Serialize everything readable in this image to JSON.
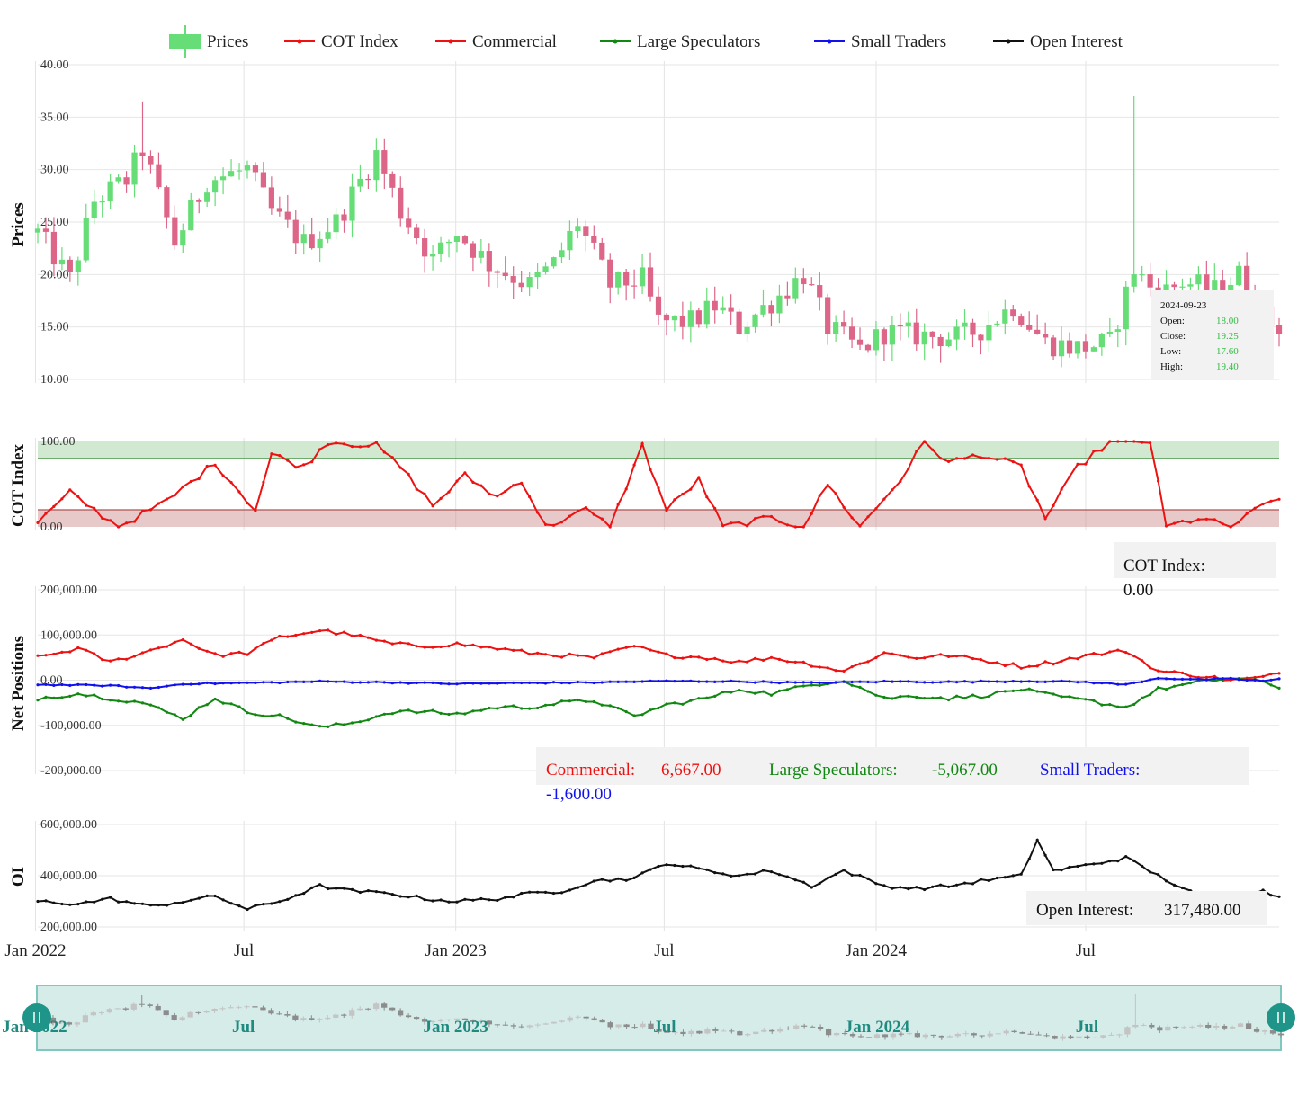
{
  "legend": [
    {
      "label": "Prices",
      "color": "#66dd77",
      "kind": "candle"
    },
    {
      "label": "COT Index",
      "color": "#ee1111",
      "kind": "line"
    },
    {
      "label": "Commercial",
      "color": "#ee1111",
      "kind": "line"
    },
    {
      "label": "Large Speculators",
      "color": "#118811",
      "kind": "line"
    },
    {
      "label": "Small Traders",
      "color": "#1111ee",
      "kind": "line"
    },
    {
      "label": "Open Interest",
      "color": "#111111",
      "kind": "line"
    }
  ],
  "colors": {
    "up": "#66dd77",
    "down": "#dd6688",
    "cot": "#ee1111",
    "commercial": "#ee1111",
    "large_speculators": "#118811",
    "small_traders": "#1111ee",
    "open_interest": "#111111",
    "band_high": "#99cc99",
    "band_low": "#cc8888",
    "navigator": "#d6ece9",
    "navigator_border": "#7fc7bf",
    "handle": "#1f9488"
  },
  "x_axis": {
    "tick_labels": [
      "Jan 2022",
      "Jul",
      "Jan 2023",
      "Jul",
      "Jan 2024",
      "Jul"
    ]
  },
  "panels": {
    "prices": {
      "title": "Prices",
      "tick_labels": [
        "40.00",
        "35.00",
        "30.00",
        "25.00",
        "20.00",
        "15.00",
        "10.00"
      ],
      "tooltip": {
        "date": "2024-09-23",
        "rows": [
          {
            "label": "Open:",
            "value": "18.00"
          },
          {
            "label": "Close:",
            "value": "19.25"
          },
          {
            "label": "Low:",
            "value": "17.60"
          },
          {
            "label": "High:",
            "value": "19.40"
          }
        ]
      }
    },
    "cot": {
      "title": "COT Index",
      "tick_labels": [
        "100.00",
        "0.00"
      ],
      "tooltip": {
        "label": "COT Index:",
        "value": "0.00"
      }
    },
    "net": {
      "title": "Net Positions",
      "tick_labels": [
        "200,000.00",
        "100,000.00",
        "0.00",
        "-100,000.00",
        "-200,000.00"
      ],
      "tooltip": {
        "commercial_label": "Commercial:",
        "commercial_value": "6,667.00",
        "large_label": "Large Speculators:",
        "large_value": "-5,067.00",
        "small_label": "Small Traders:",
        "small_value": "-1,600.00"
      }
    },
    "oi": {
      "title": "OI",
      "tick_labels": [
        "600,000.00",
        "400,000.00",
        "200,000.00"
      ],
      "tooltip": {
        "label": "Open Interest:",
        "value": "317,480.00"
      }
    }
  },
  "navigator": {
    "tick_labels": [
      "Jan 2022",
      "Jul",
      "Jan 2023",
      "Jul",
      "Jan 2024",
      "Jul"
    ]
  },
  "chart_data": {
    "type": "candlestick",
    "x_range": [
      "2022-01-03",
      "2024-12-16"
    ],
    "x_ticks": [
      "2022-01-01",
      "2022-07-01",
      "2023-01-01",
      "2023-07-01",
      "2024-01-01",
      "2024-07-01"
    ],
    "prices": {
      "ylim": [
        10,
        40
      ],
      "anchors": [
        [
          "2022-01-03",
          24
        ],
        [
          "2022-01-31",
          19.5
        ],
        [
          "2022-02-21",
          27
        ],
        [
          "2022-03-21",
          29
        ],
        [
          "2022-04-04",
          32
        ],
        [
          "2022-05-02",
          23
        ],
        [
          "2022-05-30",
          29
        ],
        [
          "2022-07-04",
          30
        ],
        [
          "2022-07-25",
          26
        ],
        [
          "2022-08-22",
          23
        ],
        [
          "2022-09-19",
          25
        ],
        [
          "2022-10-24",
          31.5
        ],
        [
          "2022-11-14",
          26
        ],
        [
          "2022-12-12",
          21.5
        ],
        [
          "2023-01-02",
          24
        ],
        [
          "2023-01-30",
          21
        ],
        [
          "2023-03-06",
          19
        ],
        [
          "2023-03-27",
          21
        ],
        [
          "2023-04-17",
          25
        ],
        [
          "2023-05-15",
          19
        ],
        [
          "2023-06-12",
          19.5
        ],
        [
          "2023-06-26",
          15.5
        ],
        [
          "2023-07-24",
          15.5
        ],
        [
          "2023-08-14",
          17
        ],
        [
          "2023-09-04",
          15
        ],
        [
          "2023-10-09",
          18
        ],
        [
          "2023-10-30",
          20
        ],
        [
          "2023-11-20",
          15
        ],
        [
          "2023-12-18",
          12.8
        ],
        [
          "2024-01-08",
          14.5
        ],
        [
          "2024-02-05",
          14.2
        ],
        [
          "2024-03-11",
          14
        ],
        [
          "2024-04-01",
          14.8
        ],
        [
          "2024-04-29",
          17
        ],
        [
          "2024-05-27",
          13.5
        ],
        [
          "2024-06-24",
          13
        ],
        [
          "2024-07-22",
          13.5
        ],
        [
          "2024-08-12",
          20.5
        ],
        [
          "2024-09-02",
          18
        ],
        [
          "2024-09-23",
          19.3
        ],
        [
          "2024-10-21",
          18.5
        ],
        [
          "2024-11-11",
          20
        ],
        [
          "2024-12-02",
          16
        ],
        [
          "2024-12-16",
          15
        ]
      ],
      "spikes": [
        {
          "date": "2024-08-12",
          "high": 37
        },
        {
          "date": "2022-04-04",
          "high": 36.5
        }
      ]
    },
    "cot_index": {
      "ylim": [
        0,
        100
      ],
      "bands": [
        {
          "from": 80,
          "to": 100,
          "name": "high"
        },
        {
          "from": 0,
          "to": 20,
          "name": "low"
        }
      ],
      "anchors": [
        [
          "2022-01-03",
          5
        ],
        [
          "2022-01-31",
          40
        ],
        [
          "2022-03-14",
          0
        ],
        [
          "2022-04-25",
          30
        ],
        [
          "2022-06-06",
          75
        ],
        [
          "2022-07-11",
          20
        ],
        [
          "2022-07-25",
          85
        ],
        [
          "2022-08-22",
          70
        ],
        [
          "2022-09-12",
          100
        ],
        [
          "2022-10-24",
          95
        ],
        [
          "2022-11-14",
          70
        ],
        [
          "2022-12-12",
          25
        ],
        [
          "2023-01-09",
          60
        ],
        [
          "2023-02-06",
          35
        ],
        [
          "2023-02-27",
          55
        ],
        [
          "2023-03-20",
          0
        ],
        [
          "2023-04-24",
          20
        ],
        [
          "2023-05-15",
          0
        ],
        [
          "2023-06-12",
          95
        ],
        [
          "2023-07-03",
          20
        ],
        [
          "2023-07-31",
          55
        ],
        [
          "2023-08-21",
          0
        ],
        [
          "2023-10-02",
          10
        ],
        [
          "2023-10-30",
          0
        ],
        [
          "2023-11-20",
          50
        ],
        [
          "2023-12-18",
          0
        ],
        [
          "2024-01-22",
          55
        ],
        [
          "2024-02-12",
          100
        ],
        [
          "2024-03-04",
          75
        ],
        [
          "2024-04-01",
          85
        ],
        [
          "2024-05-06",
          70
        ],
        [
          "2024-05-27",
          10
        ],
        [
          "2024-06-24",
          70
        ],
        [
          "2024-07-22",
          100
        ],
        [
          "2024-08-26",
          100
        ],
        [
          "2024-09-09",
          0
        ],
        [
          "2024-10-07",
          10
        ],
        [
          "2024-11-04",
          0
        ],
        [
          "2024-12-02",
          25
        ],
        [
          "2024-12-16",
          35
        ]
      ]
    },
    "net_positions": {
      "ylim": [
        -200000,
        200000
      ],
      "commercial": [
        [
          "2022-01-03",
          50000
        ],
        [
          "2022-02-07",
          70000
        ],
        [
          "2022-03-07",
          40000
        ],
        [
          "2022-04-04",
          60000
        ],
        [
          "2022-05-09",
          90000
        ],
        [
          "2022-06-06",
          55000
        ],
        [
          "2022-07-04",
          60000
        ],
        [
          "2022-08-01",
          95000
        ],
        [
          "2022-09-05",
          110000
        ],
        [
          "2022-10-03",
          100000
        ],
        [
          "2022-11-07",
          80000
        ],
        [
          "2022-12-05",
          75000
        ],
        [
          "2023-01-02",
          80000
        ],
        [
          "2023-02-06",
          70000
        ],
        [
          "2023-03-06",
          60000
        ],
        [
          "2023-04-03",
          55000
        ],
        [
          "2023-05-01",
          50000
        ],
        [
          "2023-06-05",
          75000
        ],
        [
          "2023-07-03",
          55000
        ],
        [
          "2023-08-07",
          50000
        ],
        [
          "2023-09-04",
          40000
        ],
        [
          "2023-10-02",
          50000
        ],
        [
          "2023-11-06",
          35000
        ],
        [
          "2023-12-04",
          20000
        ],
        [
          "2024-01-08",
          60000
        ],
        [
          "2024-02-05",
          50000
        ],
        [
          "2024-03-04",
          55000
        ],
        [
          "2024-04-01",
          45000
        ],
        [
          "2024-05-06",
          30000
        ],
        [
          "2024-06-03",
          40000
        ],
        [
          "2024-07-01",
          55000
        ],
        [
          "2024-08-05",
          65000
        ],
        [
          "2024-09-02",
          20000
        ],
        [
          "2024-10-07",
          10000
        ],
        [
          "2024-11-04",
          0
        ],
        [
          "2024-12-02",
          6000
        ],
        [
          "2024-12-16",
          15000
        ]
      ],
      "large_speculators": [
        [
          "2022-01-03",
          -40000
        ],
        [
          "2022-02-07",
          -30000
        ],
        [
          "2022-03-07",
          -40000
        ],
        [
          "2022-04-04",
          -50000
        ],
        [
          "2022-05-09",
          -85000
        ],
        [
          "2022-06-06",
          -40000
        ],
        [
          "2022-07-04",
          -70000
        ],
        [
          "2022-08-01",
          -80000
        ],
        [
          "2022-09-05",
          -105000
        ],
        [
          "2022-10-03",
          -95000
        ],
        [
          "2022-11-07",
          -70000
        ],
        [
          "2022-12-05",
          -70000
        ],
        [
          "2023-01-02",
          -75000
        ],
        [
          "2023-02-06",
          -60000
        ],
        [
          "2023-03-06",
          -60000
        ],
        [
          "2023-04-03",
          -50000
        ],
        [
          "2023-05-01",
          -45000
        ],
        [
          "2023-06-05",
          -80000
        ],
        [
          "2023-07-03",
          -55000
        ],
        [
          "2023-08-07",
          -40000
        ],
        [
          "2023-09-04",
          -20000
        ],
        [
          "2023-10-02",
          -30000
        ],
        [
          "2023-11-06",
          -10000
        ],
        [
          "2023-12-04",
          0
        ],
        [
          "2024-01-08",
          -40000
        ],
        [
          "2024-02-05",
          -35000
        ],
        [
          "2024-03-04",
          -40000
        ],
        [
          "2024-04-01",
          -35000
        ],
        [
          "2024-05-06",
          -20000
        ],
        [
          "2024-06-03",
          -35000
        ],
        [
          "2024-07-01",
          -45000
        ],
        [
          "2024-08-05",
          -60000
        ],
        [
          "2024-09-02",
          -20000
        ],
        [
          "2024-10-07",
          -5000
        ],
        [
          "2024-11-04",
          5000
        ],
        [
          "2024-12-02",
          -5000
        ],
        [
          "2024-12-16",
          -15000
        ]
      ],
      "small_traders": [
        [
          "2022-01-03",
          -10000
        ],
        [
          "2022-03-07",
          -12000
        ],
        [
          "2022-04-11",
          -18000
        ],
        [
          "2022-05-09",
          -8000
        ],
        [
          "2022-07-04",
          -6000
        ],
        [
          "2022-09-05",
          -3000
        ],
        [
          "2022-11-07",
          -5000
        ],
        [
          "2023-01-02",
          -8000
        ],
        [
          "2023-03-06",
          -6000
        ],
        [
          "2023-05-01",
          -5000
        ],
        [
          "2023-07-03",
          -2000
        ],
        [
          "2023-09-04",
          -3000
        ],
        [
          "2023-11-06",
          -6000
        ],
        [
          "2024-01-08",
          -3000
        ],
        [
          "2024-03-04",
          -4000
        ],
        [
          "2024-05-06",
          -2000
        ],
        [
          "2024-07-01",
          -4000
        ],
        [
          "2024-08-05",
          -10000
        ],
        [
          "2024-09-02",
          5000
        ],
        [
          "2024-10-07",
          1000
        ],
        [
          "2024-11-04",
          3000
        ],
        [
          "2024-12-02",
          -1600
        ],
        [
          "2024-12-16",
          2000
        ]
      ]
    },
    "open_interest": {
      "ylim": [
        200000,
        600000
      ],
      "anchors": [
        [
          "2022-01-03",
          300000
        ],
        [
          "2022-02-07",
          290000
        ],
        [
          "2022-03-07",
          310000
        ],
        [
          "2022-04-11",
          280000
        ],
        [
          "2022-05-09",
          300000
        ],
        [
          "2022-06-06",
          320000
        ],
        [
          "2022-07-04",
          270000
        ],
        [
          "2022-08-01",
          300000
        ],
        [
          "2022-09-05",
          360000
        ],
        [
          "2022-10-03",
          340000
        ],
        [
          "2022-11-07",
          330000
        ],
        [
          "2022-12-05",
          310000
        ],
        [
          "2023-01-02",
          300000
        ],
        [
          "2023-02-06",
          310000
        ],
        [
          "2023-03-06",
          330000
        ],
        [
          "2023-04-03",
          340000
        ],
        [
          "2023-05-01",
          380000
        ],
        [
          "2023-06-05",
          390000
        ],
        [
          "2023-07-03",
          450000
        ],
        [
          "2023-08-07",
          420000
        ],
        [
          "2023-09-04",
          400000
        ],
        [
          "2023-10-02",
          420000
        ],
        [
          "2023-11-06",
          360000
        ],
        [
          "2023-12-04",
          420000
        ],
        [
          "2024-01-08",
          360000
        ],
        [
          "2024-02-05",
          350000
        ],
        [
          "2024-03-04",
          360000
        ],
        [
          "2024-04-01",
          380000
        ],
        [
          "2024-05-06",
          400000
        ],
        [
          "2024-05-20",
          540000
        ],
        [
          "2024-06-03",
          420000
        ],
        [
          "2024-07-01",
          440000
        ],
        [
          "2024-08-05",
          470000
        ],
        [
          "2024-09-02",
          400000
        ],
        [
          "2024-10-07",
          320000
        ],
        [
          "2024-11-04",
          330000
        ],
        [
          "2024-12-02",
          340000
        ],
        [
          "2024-12-16",
          317480
        ]
      ]
    }
  }
}
